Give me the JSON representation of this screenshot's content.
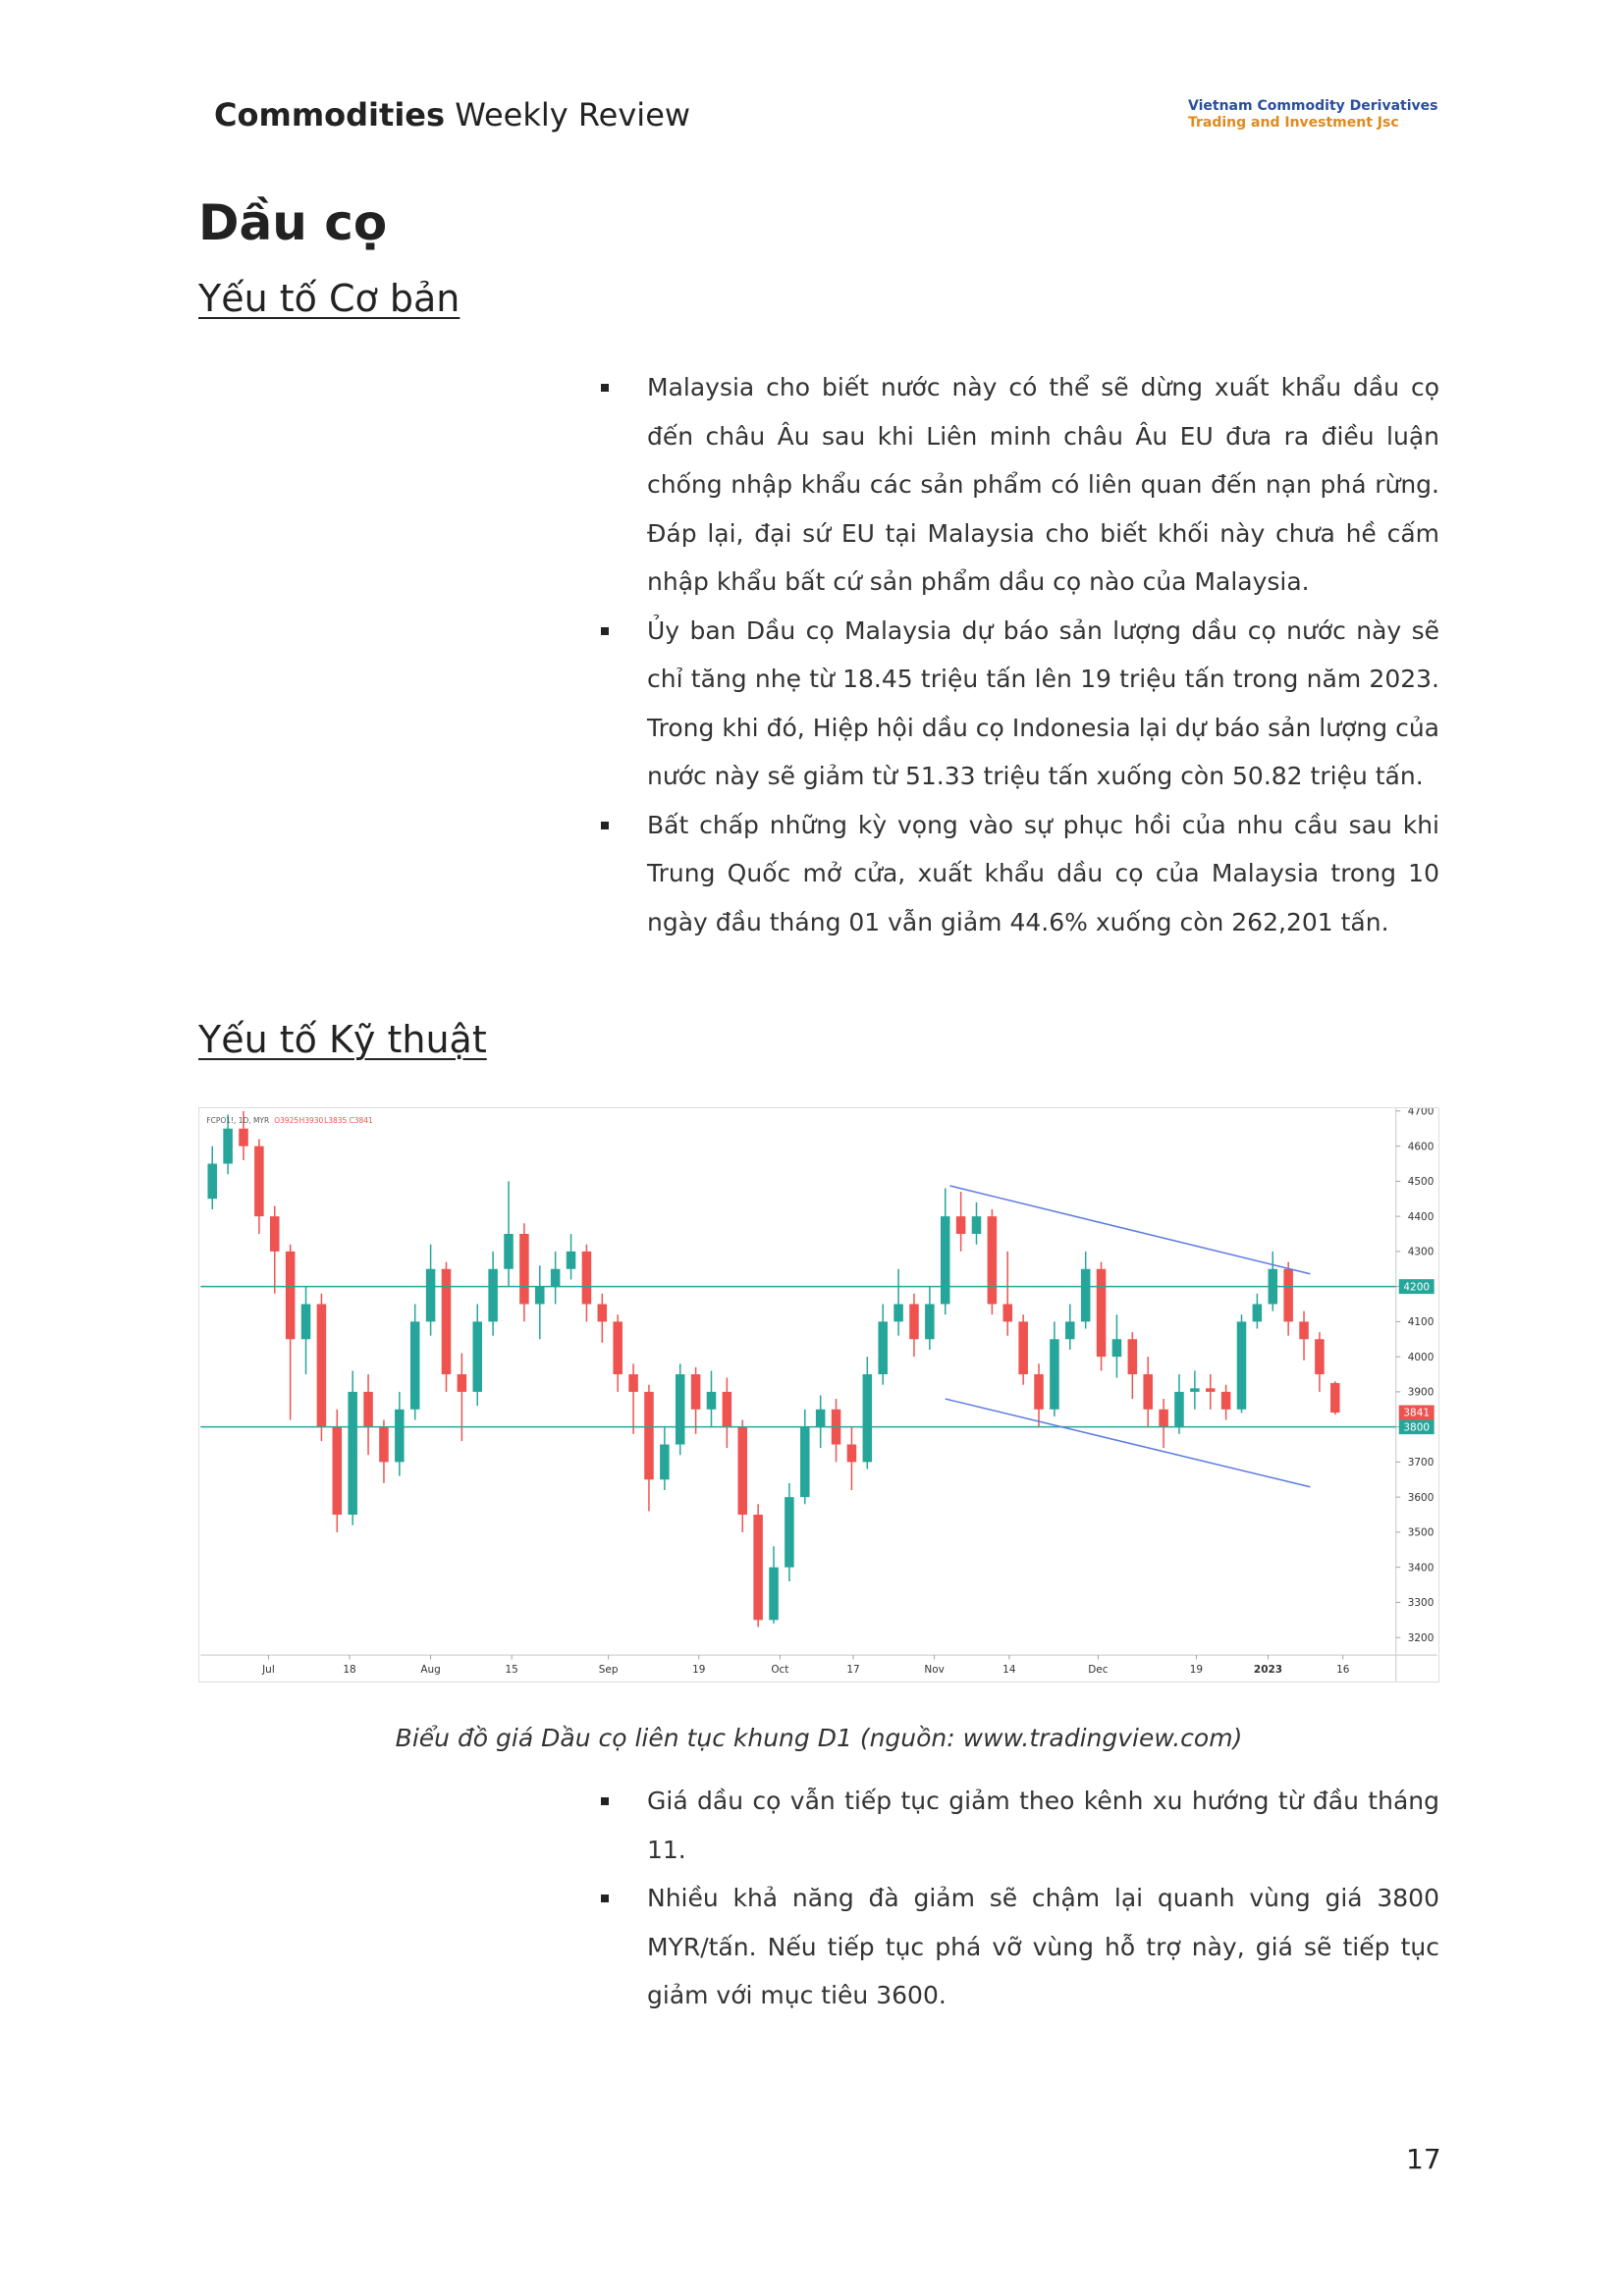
{
  "header": {
    "title_bold": "Commodities",
    "title_rest": "Weekly Review",
    "company_line1": "Vietnam Commodity Derivatives",
    "company_line2": "Trading and Investment Jsc"
  },
  "title": "Dầu cọ",
  "sections": [
    {
      "heading": "Yếu tố Cơ bản",
      "bullets": [
        "Malaysia cho biết nước này có thể sẽ dừng xuất khẩu dầu cọ đến châu Âu sau khi Liên minh châu Âu EU đưa ra điều luận chống nhập khẩu các sản phẩm có liên quan đến nạn phá rừng. Đáp lại, đại sứ EU tại Malaysia cho biết khối này chưa hề cấm nhập khẩu bất cứ sản phẩm dầu cọ nào của Malaysia.",
        "Ủy ban Dầu cọ Malaysia dự báo sản lượng dầu cọ nước này sẽ chỉ tăng nhẹ từ 18.45 triệu tấn lên 19 triệu tấn trong năm 2023. Trong khi đó, Hiệp hội dầu cọ Indonesia lại dự báo sản lượng của nước này sẽ giảm từ 51.33 triệu tấn xuống còn 50.82 triệu tấn.",
        "Bất chấp những kỳ vọng vào sự phục hồi của nhu cầu sau khi Trung Quốc mở cửa, xuất khẩu dầu cọ của Malaysia trong 10 ngày đầu tháng 01 vẫn giảm 44.6% xuống còn 262,201 tấn."
      ]
    },
    {
      "heading": "Yếu tố Kỹ thuật",
      "caption": "Biểu đồ giá Dầu cọ liên tục  khung D1  (nguồn: www.tradingview.com)",
      "bullets": [
        "Giá dầu cọ vẫn tiếp tục giảm theo kênh xu hướng từ đầu tháng 11.",
        "Nhiều khả năng đà giảm sẽ chậm lại quanh vùng giá 3800 MYR/tấn. Nếu tiếp tục phá vỡ vùng hỗ trợ này, giá sẽ tiếp tục giảm với mục tiêu 3600."
      ]
    }
  ],
  "chart_data": {
    "type": "candlestick",
    "legend_label": "FCPO1!, 1D, MYR",
    "ohlc_labels": [
      "O3925",
      "H3930",
      "L3835",
      "C3841"
    ],
    "up_color": "#26a69a",
    "down_color": "#ef5350",
    "level_color": "#26a69a",
    "channel_color": "#5b7be0",
    "grid": false,
    "x": [
      0,
      1,
      2,
      3,
      4,
      5,
      6,
      7,
      8,
      9,
      10,
      11,
      12,
      13,
      14,
      15,
      16,
      17,
      18,
      19,
      20,
      21,
      22,
      23,
      24,
      25,
      26,
      27,
      28,
      29,
      30,
      31,
      32,
      33,
      34,
      35,
      36,
      37,
      38,
      39,
      40,
      41,
      42,
      43,
      44,
      45,
      46,
      47,
      48,
      49,
      50,
      51,
      52,
      53,
      54,
      55,
      56,
      57,
      58,
      59,
      60,
      61,
      62,
      63,
      64,
      65,
      66,
      67,
      68,
      69,
      70,
      71,
      72
    ],
    "open": [
      4450,
      4550,
      4650,
      4600,
      4400,
      4300,
      4050,
      4150,
      3800,
      3550,
      3900,
      3800,
      3700,
      3850,
      4100,
      4250,
      3950,
      3900,
      4100,
      4250,
      4350,
      4150,
      4200,
      4250,
      4300,
      4150,
      4100,
      3950,
      3900,
      3650,
      3750,
      3950,
      3850,
      3900,
      3800,
      3550,
      3250,
      3400,
      3600,
      3800,
      3850,
      3750,
      3700,
      3950,
      4100,
      4150,
      4050,
      4150,
      4400,
      4350,
      4400,
      4150,
      4100,
      3950,
      3850,
      4050,
      4100,
      4250,
      4000,
      4050,
      3950,
      3850,
      3800,
      3900,
      3910,
      3900,
      3850,
      4100,
      4150,
      4250,
      4100,
      4050,
      3925
    ],
    "high": [
      4600,
      4690,
      4700,
      4620,
      4430,
      4320,
      4200,
      4180,
      3850,
      3960,
      3950,
      3820,
      3900,
      4150,
      4320,
      4270,
      4010,
      4150,
      4300,
      4500,
      4380,
      4260,
      4300,
      4350,
      4320,
      4180,
      4120,
      3980,
      3920,
      3800,
      3980,
      3970,
      3960,
      3940,
      3820,
      3580,
      3460,
      3640,
      3850,
      3890,
      3880,
      3800,
      4000,
      4150,
      4250,
      4180,
      4200,
      4480,
      4470,
      4440,
      4420,
      4300,
      4120,
      3980,
      4100,
      4150,
      4300,
      4270,
      4120,
      4070,
      4000,
      3880,
      3950,
      3960,
      3950,
      3920,
      4120,
      4180,
      4300,
      4270,
      4130,
      4070,
      3930
    ],
    "low": [
      4420,
      4520,
      4560,
      4350,
      4180,
      3820,
      3950,
      3760,
      3500,
      3520,
      3720,
      3640,
      3660,
      3820,
      4060,
      3900,
      3760,
      3860,
      4060,
      4200,
      4100,
      4050,
      4150,
      4220,
      4100,
      4040,
      3900,
      3780,
      3560,
      3620,
      3720,
      3780,
      3800,
      3740,
      3500,
      3230,
      3240,
      3360,
      3580,
      3740,
      3700,
      3620,
      3680,
      3920,
      4060,
      4000,
      4020,
      4120,
      4300,
      4320,
      4120,
      4060,
      3920,
      3800,
      3830,
      4020,
      4080,
      3960,
      3940,
      3880,
      3800,
      3740,
      3780,
      3850,
      3850,
      3820,
      3840,
      4080,
      4130,
      4060,
      3990,
      3900,
      3835
    ],
    "close": [
      4550,
      4650,
      4600,
      4400,
      4300,
      4050,
      4150,
      3800,
      3550,
      3900,
      3800,
      3700,
      3850,
      4100,
      4250,
      3950,
      3900,
      4100,
      4250,
      4350,
      4150,
      4200,
      4250,
      4300,
      4150,
      4100,
      3950,
      3900,
      3650,
      3750,
      3950,
      3850,
      3900,
      3800,
      3550,
      3250,
      3400,
      3600,
      3800,
      3850,
      3750,
      3700,
      3950,
      4100,
      4150,
      4050,
      4150,
      4400,
      4350,
      4400,
      4150,
      4100,
      3950,
      3850,
      4050,
      4100,
      4250,
      4000,
      4050,
      3950,
      3850,
      3800,
      3900,
      3910,
      3900,
      3850,
      4100,
      4150,
      4250,
      4100,
      4050,
      3950,
      3841
    ],
    "levels": [
      4200,
      3800
    ],
    "channel": [
      {
        "x": [
          47.3,
          70.4
        ],
        "y": [
          4487,
          4236
        ]
      },
      {
        "x": [
          47,
          70.4
        ],
        "y": [
          3880,
          3629
        ]
      }
    ],
    "xlim": [
      -0.75,
      75.9
    ],
    "ylim": [
      3150,
      4708
    ],
    "yticks": [
      3200,
      3300,
      3400,
      3500,
      3600,
      3700,
      3800,
      3900,
      4000,
      4100,
      4200,
      4300,
      4400,
      4500,
      4600,
      4700
    ],
    "xticks": [
      {
        "value": 3.6,
        "label": "Jul"
      },
      {
        "value": 8.8,
        "label": "18"
      },
      {
        "value": 14,
        "label": "Aug"
      },
      {
        "value": 19.2,
        "label": "15"
      },
      {
        "value": 25.4,
        "label": "Sep"
      },
      {
        "value": 31.2,
        "label": "19"
      },
      {
        "value": 36.4,
        "label": "Oct"
      },
      {
        "value": 41.1,
        "label": "17"
      },
      {
        "value": 46.3,
        "label": "Nov"
      },
      {
        "value": 51.1,
        "label": "14"
      },
      {
        "value": 56.8,
        "label": "Dec"
      },
      {
        "value": 63.1,
        "label": "19"
      },
      {
        "value": 67.7,
        "label": "2023"
      },
      {
        "value": 72.5,
        "label": "16"
      }
    ]
  },
  "page_number": "17"
}
